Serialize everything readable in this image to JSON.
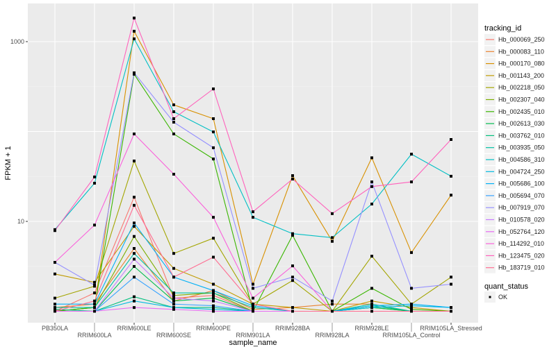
{
  "chart_data": {
    "type": "line",
    "title": "",
    "xlabel": "sample_name",
    "ylabel": "FPKM + 1",
    "yscale": "log10",
    "ylim": [
      0.95,
      2000
    ],
    "y_ticks": [
      {
        "value": 10,
        "label": "10"
      },
      {
        "value": 1000,
        "label": "1000"
      }
    ],
    "grid": true,
    "categories": [
      "PB350LA",
      "RRIM600LA",
      "RRIM600LE",
      "RRIM600SE",
      "RRIM600PE",
      "RRIM901LA",
      "RRIM928BA",
      "RRIM928LA",
      "RRIM928LE",
      "RRIM105LA_Control",
      "RRIM105LA_Stressed"
    ],
    "legend": {
      "position": "right",
      "title": "tracking_id",
      "shape_title": "quant_status",
      "shape_entries": [
        "OK"
      ]
    },
    "series": [
      {
        "name": "Hb_000069_250",
        "color": "#F8766D",
        "values": [
          1.0,
          1.6,
          18.6,
          1.4,
          1.5,
          1.0,
          1.0,
          1.0,
          1.0,
          1.0,
          1.0
        ]
      },
      {
        "name": "Hb_000083_110",
        "color": "#EA8331",
        "values": [
          1.1,
          1.2,
          5.0,
          1.3,
          1.7,
          1.05,
          1.1,
          1.2,
          1.2,
          1.0,
          1.0
        ]
      },
      {
        "name": "Hb_000170_080",
        "color": "#D89000",
        "values": [
          1.0,
          1.1,
          1306,
          198,
          139,
          2.0,
          32.3,
          6.0,
          51,
          4.5,
          19.6
        ]
      },
      {
        "name": "Hb_001143_200",
        "color": "#C09B00",
        "values": [
          2.6,
          2.1,
          8.8,
          3.0,
          2.0,
          1.2,
          1.1,
          1.0,
          1.3,
          1.1,
          1.0
        ]
      },
      {
        "name": "Hb_002218_050",
        "color": "#A3A500",
        "values": [
          1.4,
          1.9,
          47,
          4.4,
          6.5,
          1.2,
          2.2,
          1.0,
          4.1,
          1.2,
          2.4
        ]
      },
      {
        "name": "Hb_002307_040",
        "color": "#7CAE00",
        "values": [
          1.0,
          1.1,
          6.8,
          1.5,
          1.6,
          1.0,
          1.0,
          1.0,
          1.1,
          1.0,
          1.0
        ]
      },
      {
        "name": "Hb_002435_010",
        "color": "#39B600",
        "values": [
          1.0,
          1.1,
          434,
          94,
          49.5,
          1.0,
          7.0,
          1.0,
          1.8,
          1.05,
          1.0
        ]
      },
      {
        "name": "Hb_002613_030",
        "color": "#00BB4E",
        "values": [
          1.0,
          1.0,
          3.15,
          1.3,
          1.4,
          1.0,
          1.0,
          1.0,
          1.1,
          1.0,
          1.0
        ]
      },
      {
        "name": "Hb_003762_010",
        "color": "#00BF7D",
        "values": [
          1.05,
          1.0,
          1.45,
          1.1,
          1.1,
          1.0,
          1.0,
          1.0,
          1.15,
          1.0,
          1.0
        ]
      },
      {
        "name": "Hb_003935_050",
        "color": "#00C1A3",
        "values": [
          1.1,
          1.1,
          4.4,
          1.6,
          1.6,
          1.1,
          1.0,
          1.0,
          1.2,
          1.0,
          1.0
        ]
      },
      {
        "name": "Hb_004586_310",
        "color": "#00BFC4",
        "values": [
          8.1,
          26.6,
          1074,
          166,
          99,
          11.1,
          7.3,
          6.6,
          15.6,
          56,
          31.8
        ]
      },
      {
        "name": "Hb_004724_250",
        "color": "#00BAE0",
        "values": [
          1.0,
          1.0,
          1.3,
          1.1,
          1.05,
          1.0,
          1.0,
          1.0,
          1.1,
          1.15,
          1.1
        ]
      },
      {
        "name": "Hb_005686_100",
        "color": "#00B0F6",
        "values": [
          1.2,
          1.2,
          9.6,
          2.4,
          1.7,
          1.15,
          1.0,
          1.0,
          1.15,
          1.2,
          1.1
        ]
      },
      {
        "name": "Hb_005694_070",
        "color": "#35A2FF",
        "values": [
          1.0,
          1.0,
          2.4,
          1.2,
          1.15,
          1.0,
          1.0,
          1.0,
          1.0,
          1.0,
          1.0
        ]
      },
      {
        "name": "Hb_007919_070",
        "color": "#9590FF",
        "values": [
          3.5,
          1.95,
          450,
          127,
          66,
          1.8,
          2.4,
          1.3,
          27.5,
          1.8,
          2.0
        ]
      },
      {
        "name": "Hb_010578_020",
        "color": "#C77CFF",
        "values": [
          1.0,
          1.0,
          3.8,
          1.4,
          1.3,
          1.0,
          1.0,
          1.0,
          1.0,
          1.0,
          1.0
        ]
      },
      {
        "name": "Hb_052764_120",
        "color": "#E76BF3",
        "values": [
          1.0,
          1.0,
          1.1,
          1.05,
          1.0,
          1.0,
          1.0,
          1.0,
          1.0,
          1.0,
          1.0
        ]
      },
      {
        "name": "Hb_114292_010",
        "color": "#FA62DB",
        "values": [
          3.5,
          9.1,
          94,
          33.5,
          11.1,
          1.4,
          3.2,
          1.0,
          1.0,
          1.0,
          1.0
        ]
      },
      {
        "name": "Hb_123475_020",
        "color": "#FF62BC",
        "values": [
          7.9,
          31.2,
          1832,
          139,
          298,
          12.8,
          29.6,
          12.2,
          24.4,
          27.5,
          81.5
        ]
      },
      {
        "name": "Hb_183719_010",
        "color": "#FF6C91",
        "values": [
          1.0,
          1.3,
          15.1,
          2.4,
          4.0,
          1.2,
          1.0,
          1.0,
          1.0,
          1.0,
          1.0
        ]
      }
    ]
  }
}
